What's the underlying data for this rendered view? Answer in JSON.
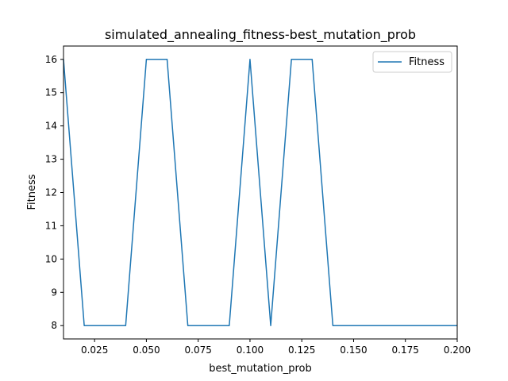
{
  "chart_data": {
    "type": "line",
    "title": "simulated_annealing_fitness-best_mutation_prob",
    "xlabel": "best_mutation_prob",
    "ylabel": "Fitness",
    "xlim": [
      0.01,
      0.2
    ],
    "ylim": [
      7.6,
      16.4
    ],
    "xticks": [
      0.025,
      0.05,
      0.075,
      0.1,
      0.125,
      0.15,
      0.175,
      0.2
    ],
    "xtick_labels": [
      "0.025",
      "0.050",
      "0.075",
      "0.100",
      "0.125",
      "0.150",
      "0.175",
      "0.200"
    ],
    "yticks": [
      8,
      9,
      10,
      11,
      12,
      13,
      14,
      15,
      16
    ],
    "ytick_labels": [
      "8",
      "9",
      "10",
      "11",
      "12",
      "13",
      "14",
      "15",
      "16"
    ],
    "grid": false,
    "legend_position": "top-right",
    "series": [
      {
        "name": "Fitness",
        "color": "#1f77b4",
        "x": [
          0.01,
          0.02,
          0.03,
          0.04,
          0.05,
          0.06,
          0.07,
          0.08,
          0.09,
          0.1,
          0.11,
          0.12,
          0.13,
          0.14,
          0.15,
          0.16,
          0.17,
          0.18,
          0.19,
          0.2
        ],
        "y": [
          16,
          8,
          8,
          8,
          16,
          16,
          8,
          8,
          8,
          16,
          8,
          16,
          16,
          8,
          8,
          8,
          8,
          8,
          8,
          8
        ]
      }
    ]
  }
}
